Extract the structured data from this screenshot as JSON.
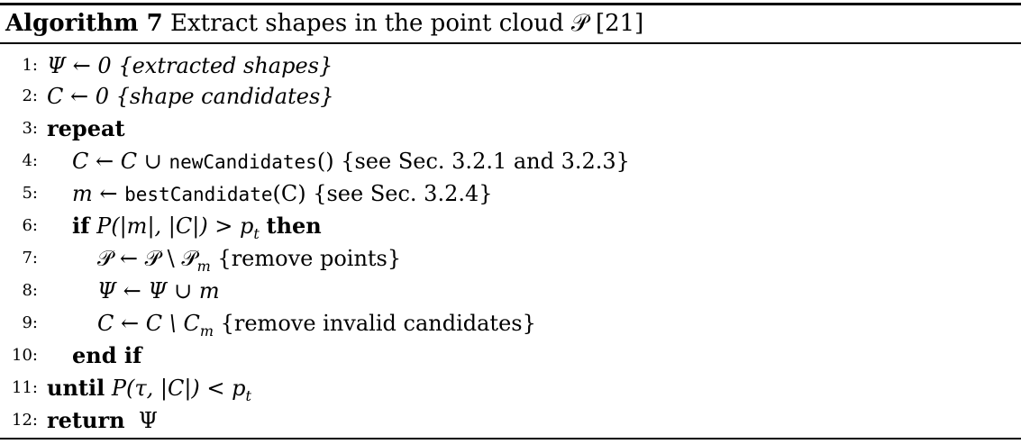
{
  "caption": {
    "label": "Algorithm 7",
    "title": "Extract shapes in the point cloud 𝒫 [21]"
  },
  "lines": [
    {
      "num": "1:",
      "parts": [
        "Ψ ← 0 {extracted shapes}"
      ]
    },
    {
      "num": "2:",
      "parts": [
        "C ← 0 {shape candidates}"
      ]
    },
    {
      "num": "3:",
      "parts": [
        "repeat"
      ]
    },
    {
      "num": "4:",
      "parts": [
        "C ← C ∪ ",
        "newCandidates",
        "() {see Sec. 3.2.1 and 3.2.3}"
      ]
    },
    {
      "num": "5:",
      "parts": [
        "m ← ",
        "bestCandidate",
        "(C) {see Sec. 3.2.4}"
      ]
    },
    {
      "num": "6:",
      "parts": [
        "if",
        " P(|m|, |C|) > p",
        "t",
        "then"
      ]
    },
    {
      "num": "7:",
      "parts": [
        "𝒫 ← 𝒫 \\ 𝒫",
        "m",
        " {remove points}"
      ]
    },
    {
      "num": "8:",
      "parts": [
        "Ψ ← Ψ ∪ m"
      ]
    },
    {
      "num": "9:",
      "parts": [
        "C ← C \\ C",
        "m",
        " {remove invalid candidates}"
      ]
    },
    {
      "num": "10:",
      "parts": [
        "end if"
      ]
    },
    {
      "num": "11:",
      "parts": [
        "until",
        " P(τ, |C|) < p",
        "t"
      ]
    },
    {
      "num": "12:",
      "parts": [
        "return",
        "Ψ"
      ]
    }
  ]
}
